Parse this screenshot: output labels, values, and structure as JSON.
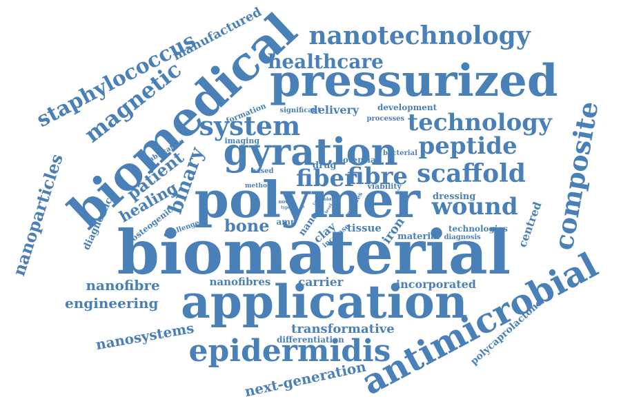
{
  "color": "#4a80b8",
  "words": [
    {
      "text": "biomaterial"
    },
    {
      "text": "polymer"
    },
    {
      "text": "application"
    },
    {
      "text": "pressurized"
    },
    {
      "text": "biomedical"
    },
    {
      "text": "gyration"
    },
    {
      "text": "antimicrobial"
    },
    {
      "text": "composite"
    },
    {
      "text": "epidermidis"
    },
    {
      "text": "nanotechnology"
    },
    {
      "text": "system"
    },
    {
      "text": "technology"
    },
    {
      "text": "peptide"
    },
    {
      "text": "scaffold"
    },
    {
      "text": "fiber"
    },
    {
      "text": "fibre"
    },
    {
      "text": "wound"
    },
    {
      "text": "staphylococcus"
    },
    {
      "text": "magnetic"
    },
    {
      "text": "nanoparticles"
    },
    {
      "text": "healthcare"
    },
    {
      "text": "binary"
    },
    {
      "text": "manufactured"
    },
    {
      "text": "patient"
    },
    {
      "text": "healing"
    },
    {
      "text": "bone"
    },
    {
      "text": "nanofibre"
    },
    {
      "text": "engineering"
    },
    {
      "text": "nanosystems"
    },
    {
      "text": "transformative"
    },
    {
      "text": "next-generation"
    },
    {
      "text": "carrier"
    },
    {
      "text": "incorporated"
    },
    {
      "text": "nanofibres"
    },
    {
      "text": "differentiation"
    },
    {
      "text": "polycaprolactone"
    },
    {
      "text": "centred"
    },
    {
      "text": "delivery"
    },
    {
      "text": "development"
    },
    {
      "text": "diagnostic"
    },
    {
      "text": "osteogenic"
    },
    {
      "text": "challenge"
    },
    {
      "text": "tissue"
    },
    {
      "text": "iron"
    },
    {
      "text": "nano"
    },
    {
      "text": "clay"
    },
    {
      "text": "material"
    },
    {
      "text": "technologies"
    },
    {
      "text": "diagnosis"
    },
    {
      "text": "dressing"
    },
    {
      "text": "viability"
    },
    {
      "text": "drug"
    },
    {
      "text": "potential"
    },
    {
      "text": "bacterial"
    },
    {
      "text": "imaging"
    },
    {
      "text": "formation"
    },
    {
      "text": "significant"
    },
    {
      "text": "processes"
    },
    {
      "text": "fabrication"
    },
    {
      "text": "based"
    },
    {
      "text": "method"
    },
    {
      "text": "amp"
    },
    {
      "text": "increase"
    },
    {
      "text": "novel"
    },
    {
      "text": "meshes"
    },
    {
      "text": "type"
    },
    {
      "text": "cell"
    },
    {
      "text": "able"
    },
    {
      "text": "care"
    },
    {
      "text": "level"
    },
    {
      "text": "using"
    }
  ]
}
